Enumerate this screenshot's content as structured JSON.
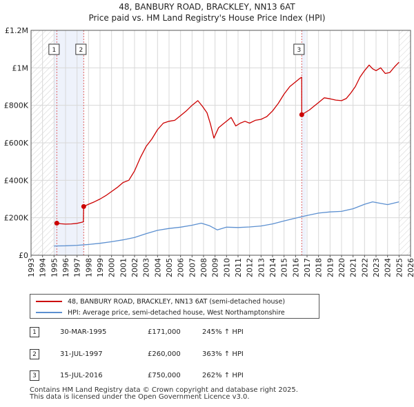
{
  "titles": {
    "line1": "48, BANBURY ROAD, BRACKLEY, NN13 6AT",
    "line2": "Price paid vs. HM Land Registry's House Price Index (HPI)"
  },
  "chart_data": {
    "type": "line",
    "x_range": [
      1993,
      2026
    ],
    "ylim": [
      0,
      1200000
    ],
    "y_ticks": [
      {
        "value": 0,
        "label": "£0"
      },
      {
        "value": 200000,
        "label": "£200K"
      },
      {
        "value": 400000,
        "label": "£400K"
      },
      {
        "value": 600000,
        "label": "£600K"
      },
      {
        "value": 800000,
        "label": "£800K"
      },
      {
        "value": 1000000,
        "label": "£1M"
      },
      {
        "value": 1200000,
        "label": "£1.2M"
      }
    ],
    "x_ticks": [
      "1993",
      "1994",
      "1995",
      "1996",
      "1997",
      "1998",
      "1999",
      "2000",
      "2001",
      "2002",
      "2003",
      "2004",
      "2005",
      "2006",
      "2007",
      "2008",
      "2009",
      "2010",
      "2011",
      "2012",
      "2013",
      "2014",
      "2015",
      "2016",
      "2017",
      "2018",
      "2019",
      "2020",
      "2021",
      "2022",
      "2023",
      "2024",
      "2025",
      "2026"
    ],
    "shaded_ranges": [
      [
        1995.0,
        1997.6
      ],
      [
        2016.54,
        2016.9
      ]
    ],
    "hatched_ranges": [
      [
        1993.0,
        1995.0
      ],
      [
        2025.0,
        2026.0
      ]
    ],
    "series": [
      {
        "name": "48, BANBURY ROAD, BRACKLEY, NN13 6AT (semi-detached house)",
        "color": "#cc0000",
        "points": [
          [
            1995.24,
            171000
          ],
          [
            1995.6,
            168000
          ],
          [
            1996.0,
            166000
          ],
          [
            1996.5,
            167000
          ],
          [
            1997.0,
            170000
          ],
          [
            1997.4,
            176000
          ],
          [
            1997.55,
            178000
          ],
          [
            1997.58,
            260000
          ],
          [
            1998.0,
            272000
          ],
          [
            1998.5,
            285000
          ],
          [
            1999.0,
            300000
          ],
          [
            1999.5,
            318000
          ],
          [
            2000.0,
            340000
          ],
          [
            2000.5,
            362000
          ],
          [
            2001.0,
            388000
          ],
          [
            2001.5,
            400000
          ],
          [
            2002.0,
            450000
          ],
          [
            2002.5,
            520000
          ],
          [
            2003.0,
            580000
          ],
          [
            2003.5,
            620000
          ],
          [
            2004.0,
            670000
          ],
          [
            2004.5,
            705000
          ],
          [
            2005.0,
            715000
          ],
          [
            2005.5,
            720000
          ],
          [
            2006.0,
            745000
          ],
          [
            2006.5,
            770000
          ],
          [
            2007.0,
            800000
          ],
          [
            2007.5,
            825000
          ],
          [
            2007.9,
            795000
          ],
          [
            2008.3,
            760000
          ],
          [
            2008.6,
            700000
          ],
          [
            2008.9,
            625000
          ],
          [
            2009.3,
            680000
          ],
          [
            2009.7,
            700000
          ],
          [
            2010.0,
            715000
          ],
          [
            2010.4,
            735000
          ],
          [
            2010.8,
            690000
          ],
          [
            2011.2,
            705000
          ],
          [
            2011.6,
            715000
          ],
          [
            2012.0,
            705000
          ],
          [
            2012.5,
            720000
          ],
          [
            2013.0,
            725000
          ],
          [
            2013.5,
            740000
          ],
          [
            2014.0,
            770000
          ],
          [
            2014.5,
            810000
          ],
          [
            2015.0,
            860000
          ],
          [
            2015.5,
            900000
          ],
          [
            2016.0,
            925000
          ],
          [
            2016.4,
            945000
          ],
          [
            2016.53,
            950000
          ],
          [
            2016.54,
            750000
          ],
          [
            2016.8,
            760000
          ],
          [
            2017.2,
            775000
          ],
          [
            2017.6,
            795000
          ],
          [
            2018.0,
            815000
          ],
          [
            2018.5,
            840000
          ],
          [
            2019.0,
            835000
          ],
          [
            2019.5,
            828000
          ],
          [
            2020.0,
            825000
          ],
          [
            2020.4,
            836000
          ],
          [
            2020.8,
            865000
          ],
          [
            2021.2,
            900000
          ],
          [
            2021.6,
            950000
          ],
          [
            2022.0,
            985000
          ],
          [
            2022.4,
            1015000
          ],
          [
            2022.7,
            995000
          ],
          [
            2023.0,
            985000
          ],
          [
            2023.4,
            1000000
          ],
          [
            2023.8,
            970000
          ],
          [
            2024.2,
            975000
          ],
          [
            2024.6,
            1005000
          ],
          [
            2025.0,
            1030000
          ]
        ]
      },
      {
        "name": "HPI: Average price, semi-detached house, West Northamptonshire",
        "color": "#5b8fd0",
        "points": [
          [
            1995.0,
            49500
          ],
          [
            1996.0,
            50500
          ],
          [
            1997.0,
            53000
          ],
          [
            1998.0,
            57500
          ],
          [
            1999.0,
            63500
          ],
          [
            2000.0,
            72000
          ],
          [
            2001.0,
            82000
          ],
          [
            2002.0,
            95000
          ],
          [
            2003.0,
            115000
          ],
          [
            2004.0,
            133000
          ],
          [
            2005.0,
            143000
          ],
          [
            2006.0,
            150000
          ],
          [
            2007.0,
            160000
          ],
          [
            2007.8,
            171000
          ],
          [
            2008.5,
            158000
          ],
          [
            2009.2,
            135000
          ],
          [
            2010.0,
            150000
          ],
          [
            2011.0,
            148000
          ],
          [
            2012.0,
            151000
          ],
          [
            2013.0,
            156000
          ],
          [
            2014.0,
            167000
          ],
          [
            2015.0,
            183000
          ],
          [
            2016.0,
            198000
          ],
          [
            2017.0,
            212000
          ],
          [
            2018.0,
            225000
          ],
          [
            2019.0,
            231000
          ],
          [
            2020.0,
            234000
          ],
          [
            2021.0,
            248000
          ],
          [
            2022.0,
            272000
          ],
          [
            2022.7,
            285000
          ],
          [
            2023.3,
            278000
          ],
          [
            2024.0,
            270000
          ],
          [
            2025.0,
            285000
          ]
        ]
      }
    ],
    "sales": [
      {
        "id": "1",
        "x": 1995.24,
        "y": 171000
      },
      {
        "id": "2",
        "x": 1997.58,
        "y": 260000
      },
      {
        "id": "3",
        "x": 2016.54,
        "y": 750000
      }
    ]
  },
  "legend": {
    "property": "48, BANBURY ROAD, BRACKLEY, NN13 6AT (semi-detached house)",
    "hpi": "HPI: Average price, semi-detached house, West Northamptonshire"
  },
  "sales_table": [
    {
      "num": "1",
      "date": "30-MAR-1995",
      "price": "£171,000",
      "hpi": "245% ↑ HPI"
    },
    {
      "num": "2",
      "date": "31-JUL-1997",
      "price": "£260,000",
      "hpi": "363% ↑ HPI"
    },
    {
      "num": "3",
      "date": "15-JUL-2016",
      "price": "£750,000",
      "hpi": "262% ↑ HPI"
    }
  ],
  "footer": {
    "line1": "Contains HM Land Registry data © Crown copyright and database right 2025.",
    "line2": "This data is licensed under the Open Government Licence v3.0."
  },
  "colors": {
    "property": "#cc0000",
    "hpi": "#5b8fd0",
    "shade": "#eef2fb",
    "grid": "#d8d8d8"
  }
}
